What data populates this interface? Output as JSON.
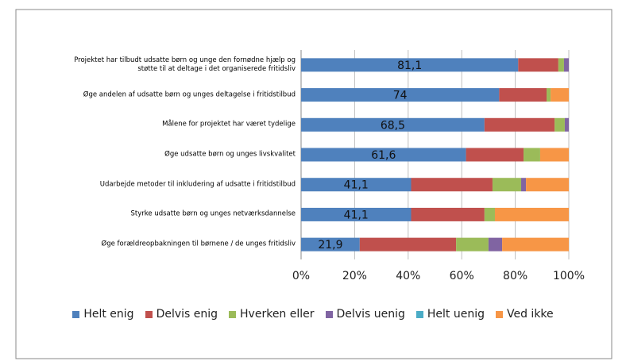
{
  "chart_data": {
    "type": "stacked_bar_horizontal",
    "categories": [
      "Projektet har tilbudt udsatte børn og unge den fornødne hjælp og støtte til at deltage i det organiserede fritidsliv",
      "Øge andelen af udsatte børn og unges deltagelse i fritidstilbud",
      "Målene for projektet har været tydelige",
      "Øge udsatte børn og unges livskvalitet",
      "Udarbejde metoder til inkludering af udsatte i fritidstilbud",
      "Styrke udsatte børn og unges netværksdannelse",
      "Øge forældreopbakningen til børnene / de unges fritidsliv"
    ],
    "series": [
      {
        "name": "Helt enig",
        "color": "#4f81bd",
        "values": [
          81.1,
          74,
          68.5,
          61.6,
          41.1,
          41.1,
          21.9
        ],
        "value_labels": [
          "81,1",
          "74",
          "68,5",
          "61,6",
          "41,1",
          "41,1",
          "21,9"
        ]
      },
      {
        "name": "Delvis enig",
        "color": "#c0504d",
        "values": [
          15.0,
          17.7,
          26.2,
          21.5,
          30.4,
          27.4,
          36.0
        ]
      },
      {
        "name": "Hverken eller",
        "color": "#9bbb59",
        "values": [
          2.1,
          1.5,
          3.8,
          6.2,
          10.7,
          3.9,
          12.1
        ]
      },
      {
        "name": "Delvis uenig",
        "color": "#8064a2",
        "values": [
          1.8,
          0,
          1.5,
          0,
          1.8,
          0,
          5.1
        ]
      },
      {
        "name": "Helt uenig",
        "color": "#4bacc6",
        "values": [
          0,
          0,
          0,
          0,
          0,
          0,
          0
        ]
      },
      {
        "name": "Ved ikke",
        "color": "#f79646",
        "values": [
          0,
          6.8,
          0,
          10.7,
          16.0,
          27.6,
          24.9
        ]
      }
    ],
    "xlim": [
      0,
      100
    ],
    "xticks": [
      {
        "value": 0,
        "label": "0%"
      },
      {
        "value": 20,
        "label": "20%"
      },
      {
        "value": 40,
        "label": "40%"
      },
      {
        "value": 60,
        "label": "60%"
      },
      {
        "value": 80,
        "label": "80%"
      },
      {
        "value": 100,
        "label": "100%"
      }
    ],
    "grid": true
  }
}
